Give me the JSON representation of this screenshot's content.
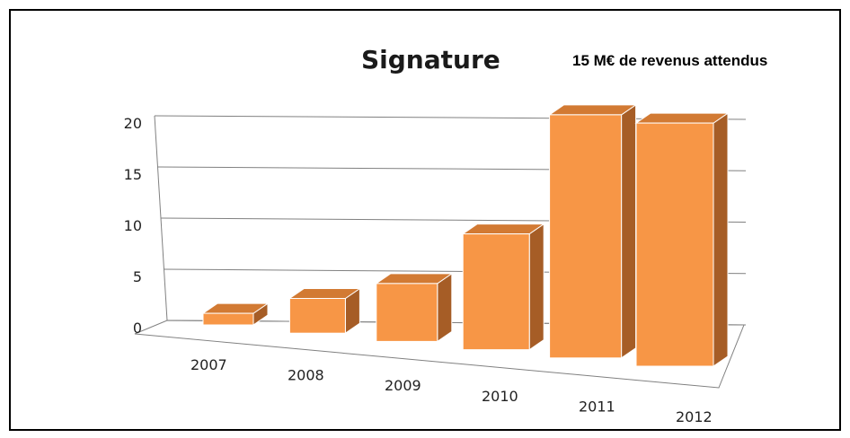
{
  "chart_data": {
    "type": "bar",
    "title": "Signature",
    "subtitle": "15 M€ de revenus attendus",
    "categories": [
      "2007",
      "2008",
      "2009",
      "2010",
      "2011",
      "2012"
    ],
    "values": [
      1,
      3,
      5,
      10,
      21,
      21
    ],
    "y_ticks": [
      "0",
      "5",
      "10",
      "15",
      "20"
    ],
    "ylim": [
      0,
      20
    ],
    "grid": true,
    "legend": "none",
    "colors": {
      "front": "#F79646",
      "side": "#A65D26",
      "top": "#D27A33",
      "grid": "#808080"
    }
  }
}
